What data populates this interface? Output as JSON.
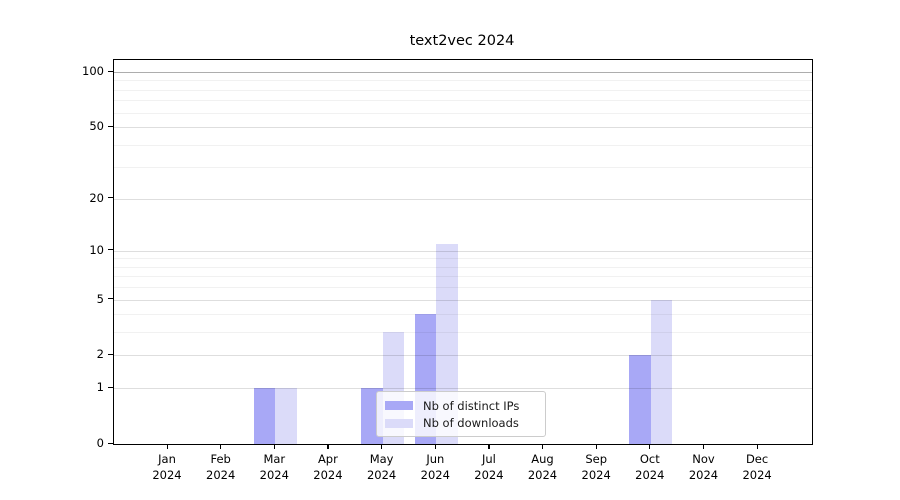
{
  "title": "text2vec 2024",
  "chart_data": {
    "type": "bar",
    "title": "text2vec 2024",
    "categories": [
      "Jan 2024",
      "Feb 2024",
      "Mar 2024",
      "Apr 2024",
      "May 2024",
      "Jun 2024",
      "Jul 2024",
      "Aug 2024",
      "Sep 2024",
      "Oct 2024",
      "Nov 2024",
      "Dec 2024"
    ],
    "series": [
      {
        "name": "Nb of distinct IPs",
        "color": "#a8a8f6",
        "values": [
          0,
          0,
          1,
          0,
          1,
          4,
          0,
          0,
          0,
          2,
          0,
          0
        ]
      },
      {
        "name": "Nb of downloads",
        "color": "#dbdbf9",
        "values": [
          0,
          0,
          1,
          0,
          3,
          11,
          0,
          0,
          0,
          5,
          0,
          0
        ]
      }
    ],
    "xlabel": "",
    "ylabel": "",
    "y_scale": "log1p",
    "y_ticks": [
      0,
      1,
      2,
      5,
      10,
      20,
      50,
      100
    ],
    "y_minor_ticks": [
      3,
      4,
      6,
      7,
      8,
      9,
      30,
      40,
      60,
      70,
      80,
      90
    ],
    "ylim": [
      0,
      117
    ],
    "grid": true,
    "legend_position": "lower center",
    "colors": {
      "grid_major": "rgba(0,0,0,0.13)",
      "grid_minor": "rgba(0,0,0,0.055)",
      "grid_top": "rgba(0,0,0,0.32)",
      "axis": "#000000"
    }
  }
}
